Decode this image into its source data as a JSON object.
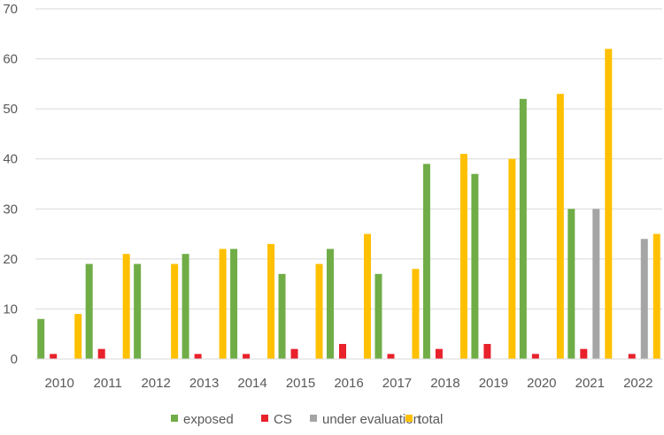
{
  "chart_data": {
    "type": "bar",
    "title": "",
    "xlabel": "",
    "ylabel": "",
    "ylim": [
      0,
      70
    ],
    "yticks": [
      0,
      10,
      20,
      30,
      40,
      50,
      60,
      70
    ],
    "grid": "horizontal",
    "legend_position": "bottom",
    "categories": [
      "2010",
      "2011",
      "2012",
      "2013",
      "2014",
      "2015",
      "2016",
      "2017",
      "2018",
      "2019",
      "2020",
      "2021",
      "2022"
    ],
    "series": [
      {
        "name": "exposed",
        "color": "#70AD47",
        "values": [
          8,
          19,
          19,
          21,
          22,
          17,
          22,
          17,
          39,
          37,
          52,
          30,
          0
        ]
      },
      {
        "name": "CS",
        "color": "#E8212B",
        "values": [
          1,
          2,
          0,
          1,
          1,
          2,
          3,
          1,
          2,
          3,
          1,
          2,
          1
        ]
      },
      {
        "name": "under evaluation",
        "color": "#A5A5A5",
        "values": [
          0,
          0,
          0,
          0,
          0,
          0,
          0,
          0,
          0,
          0,
          0,
          30,
          24
        ]
      },
      {
        "name": "total",
        "color": "#FFC000",
        "values": [
          9,
          21,
          19,
          22,
          23,
          19,
          25,
          18,
          41,
          40,
          53,
          62,
          25
        ]
      }
    ]
  }
}
